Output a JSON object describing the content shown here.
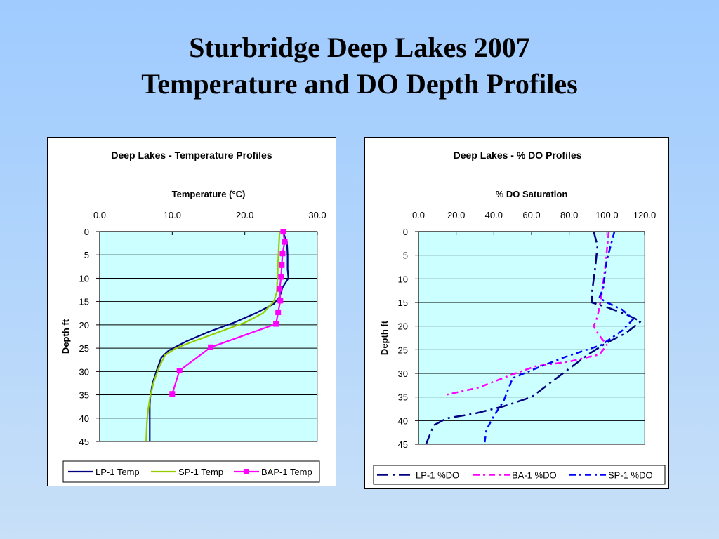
{
  "slide": {
    "title_line1": "Sturbridge Deep Lakes 2007",
    "title_line2": "Temperature and DO Depth Profiles"
  },
  "chart_data": [
    {
      "type": "line",
      "title": "Deep Lakes - Temperature Profiles",
      "xlabel": "Temperature (°C)",
      "ylabel": "Depth ft",
      "xlim": [
        0,
        30
      ],
      "ylim": [
        0,
        45
      ],
      "x_axis_position": "top",
      "y_reversed": true,
      "x_ticks": [
        "0.0",
        "10.0",
        "20.0",
        "30.0"
      ],
      "y_ticks": [
        "0",
        "5",
        "10",
        "15",
        "20",
        "25",
        "30",
        "35",
        "40",
        "45"
      ],
      "plot_background": "#ccffff",
      "grid": "horizontal",
      "legend_position": "bottom",
      "series": [
        {
          "name": "LP-1 Temp",
          "color": "#000080",
          "style": "solid",
          "marker": "none",
          "points": [
            [
              25.2,
              0
            ],
            [
              25.8,
              2
            ],
            [
              25.9,
              5
            ],
            [
              25.9,
              8
            ],
            [
              26.0,
              10
            ],
            [
              25.2,
              12
            ],
            [
              24.8,
              14
            ],
            [
              24.0,
              15.5
            ],
            [
              21.5,
              17.5
            ],
            [
              18.5,
              19.5
            ],
            [
              15.0,
              21.5
            ],
            [
              12.0,
              23.5
            ],
            [
              9.5,
              25.5
            ],
            [
              8.5,
              27
            ],
            [
              7.8,
              30
            ],
            [
              7.3,
              32.5
            ],
            [
              7.0,
              35
            ],
            [
              6.9,
              37
            ],
            [
              6.9,
              40
            ],
            [
              6.9,
              45
            ]
          ]
        },
        {
          "name": "SP-1 Temp",
          "color": "#99cc00",
          "style": "solid",
          "marker": "none",
          "points": [
            [
              24.8,
              0
            ],
            [
              24.7,
              3
            ],
            [
              24.6,
              6
            ],
            [
              24.5,
              10
            ],
            [
              24.4,
              13
            ],
            [
              24.0,
              15
            ],
            [
              22.5,
              17.5
            ],
            [
              20.0,
              19.5
            ],
            [
              16.5,
              21.5
            ],
            [
              13.0,
              23.5
            ],
            [
              10.5,
              25
            ],
            [
              9.0,
              26.5
            ],
            [
              8.2,
              29
            ],
            [
              7.5,
              32
            ],
            [
              7.0,
              35
            ],
            [
              6.7,
              38
            ],
            [
              6.5,
              41
            ],
            [
              6.4,
              45
            ]
          ]
        },
        {
          "name": "BAP-1 Temp",
          "color": "#ff00ff",
          "style": "solid",
          "marker": "square",
          "points": [
            [
              25.3,
              0
            ],
            [
              25.5,
              2.2
            ],
            [
              25.2,
              4.7
            ],
            [
              25.1,
              7.2
            ],
            [
              25.0,
              9.7
            ],
            [
              24.8,
              12.3
            ],
            [
              24.9,
              14.8
            ],
            [
              24.6,
              17.3
            ],
            [
              24.3,
              19.8
            ],
            [
              15.3,
              24.8
            ],
            [
              11.0,
              29.8
            ],
            [
              10.0,
              34.8
            ]
          ]
        }
      ]
    },
    {
      "type": "line",
      "title": "Deep Lakes - % DO Profiles",
      "xlabel": "% DO Saturation",
      "ylabel": "Depth ft",
      "xlim": [
        0,
        120
      ],
      "ylim": [
        0,
        45
      ],
      "x_axis_position": "top",
      "y_reversed": true,
      "x_ticks": [
        "0.0",
        "20.0",
        "40.0",
        "60.0",
        "80.0",
        "100.0",
        "120.0"
      ],
      "y_ticks": [
        "0",
        "5",
        "10",
        "15",
        "20",
        "25",
        "30",
        "35",
        "40",
        "45"
      ],
      "plot_background": "#ccffff",
      "grid": "horizontal",
      "legend_position": "bottom",
      "series": [
        {
          "name": "LP-1 %DO",
          "color": "#000080",
          "style": "long-dash-dot",
          "marker": "none",
          "points": [
            [
              93,
              0
            ],
            [
              95,
              3
            ],
            [
              94,
              7
            ],
            [
              93,
              10
            ],
            [
              92,
              13
            ],
            [
              92,
              15
            ],
            [
              100,
              16
            ],
            [
              110,
              17.5
            ],
            [
              118,
              19
            ],
            [
              110,
              21.5
            ],
            [
              100,
              23.5
            ],
            [
              90,
              26
            ],
            [
              80,
              29
            ],
            [
              70,
              32
            ],
            [
              60,
              35
            ],
            [
              45,
              37
            ],
            [
              30,
              38.5
            ],
            [
              15,
              39.5
            ],
            [
              8,
              41
            ],
            [
              4,
              45
            ]
          ]
        },
        {
          "name": "BA-1 %DO",
          "color": "#ff00ff",
          "style": "dash-dot",
          "marker": "none",
          "points": [
            [
              101,
              0
            ],
            [
              100,
              4
            ],
            [
              99,
              8
            ],
            [
              98,
              11
            ],
            [
              97,
              14
            ],
            [
              96,
              16
            ],
            [
              95,
              18
            ],
            [
              93,
              20
            ],
            [
              96,
              22
            ],
            [
              100,
              24
            ],
            [
              96,
              26
            ],
            [
              80,
              27.5
            ],
            [
              62,
              28.5
            ],
            [
              48,
              30.5
            ],
            [
              32,
              33
            ],
            [
              15,
              34.5
            ]
          ]
        },
        {
          "name": "SP-1 %DO",
          "color": "#0000ff",
          "style": "dash-dot",
          "marker": "none",
          "points": [
            [
              104,
              0
            ],
            [
              102,
              3
            ],
            [
              100,
              6
            ],
            [
              99,
              9
            ],
            [
              98,
              12
            ],
            [
              96,
              14
            ],
            [
              100,
              15
            ],
            [
              108,
              16.5
            ],
            [
              114,
              18.5
            ],
            [
              108,
              21
            ],
            [
              97,
              24
            ],
            [
              78,
              26.5
            ],
            [
              62,
              29
            ],
            [
              50,
              31
            ],
            [
              48,
              33
            ],
            [
              45,
              36
            ],
            [
              40,
              39
            ],
            [
              36,
              42
            ],
            [
              35,
              45
            ]
          ]
        }
      ]
    }
  ]
}
